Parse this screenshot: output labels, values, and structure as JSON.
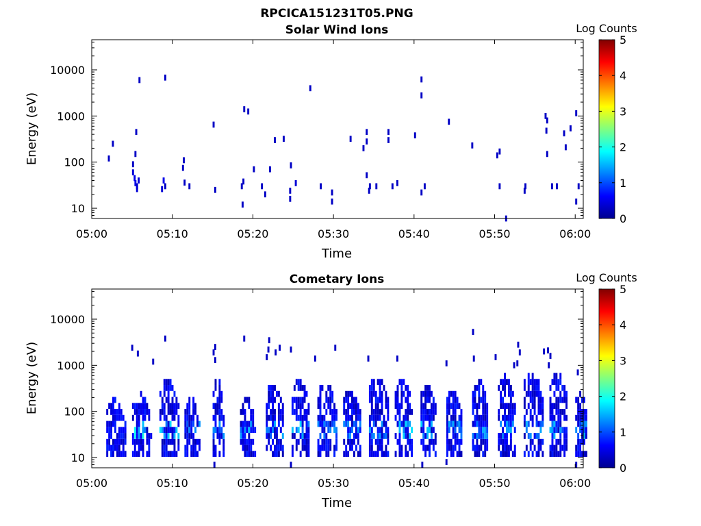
{
  "figure_title": "RPCICA151231T05.PNG",
  "colormap": [
    "#00008f",
    "#0000ff",
    "#0080ff",
    "#00ffff",
    "#80ff80",
    "#ffff00",
    "#ff8000",
    "#ff0000",
    "#800000"
  ],
  "chart_data": [
    {
      "type": "heatmap",
      "title": "Solar Wind Ions",
      "xlabel": "Time",
      "ylabel": "Energy (eV)",
      "x_ticks": [
        "05:00",
        "05:10",
        "05:20",
        "05:30",
        "05:40",
        "05:50",
        "06:00"
      ],
      "x_range_min": [
        0,
        61
      ],
      "y_scale": "log",
      "y_range": [
        6,
        45000
      ],
      "y_ticks": [
        10,
        100,
        1000,
        10000
      ],
      "y_tick_labels": [
        "10",
        "100",
        "1000",
        "10000"
      ],
      "colorbar": {
        "label": "Log Counts",
        "range": [
          0,
          5
        ],
        "ticks": [
          "0",
          "1",
          "2",
          "3",
          "4",
          "5"
        ]
      },
      "points": [
        [
          2.0,
          120,
          0.3
        ],
        [
          2.5,
          250,
          0.3
        ],
        [
          5.0,
          90,
          0.3
        ],
        [
          5.0,
          60,
          0.4
        ],
        [
          5.2,
          45,
          0.5
        ],
        [
          5.3,
          35,
          0.5
        ],
        [
          5.5,
          30,
          0.3
        ],
        [
          5.5,
          26,
          0.4
        ],
        [
          5.7,
          40,
          0.4
        ],
        [
          5.3,
          150,
          0.3
        ],
        [
          5.4,
          450,
          0.3
        ],
        [
          5.8,
          6000,
          0.3
        ],
        [
          8.6,
          26,
          0.4
        ],
        [
          8.8,
          40,
          0.5
        ],
        [
          9.0,
          30,
          0.3
        ],
        [
          9.0,
          6800,
          0.3
        ],
        [
          11.3,
          110,
          0.3
        ],
        [
          11.2,
          75,
          0.3
        ],
        [
          11.4,
          36,
          0.3
        ],
        [
          12.0,
          30,
          0.3
        ],
        [
          15.0,
          650,
          0.3
        ],
        [
          15.2,
          25,
          0.3
        ],
        [
          18.8,
          1400,
          0.3
        ],
        [
          19.3,
          1250,
          0.3
        ],
        [
          18.5,
          30,
          0.3
        ],
        [
          18.7,
          38,
          0.3
        ],
        [
          18.6,
          12,
          0.3
        ],
        [
          20.0,
          70,
          0.3
        ],
        [
          21.0,
          30,
          0.3
        ],
        [
          21.4,
          20,
          0.3
        ],
        [
          22.0,
          70,
          0.3
        ],
        [
          22.6,
          300,
          0.3
        ],
        [
          23.7,
          320,
          0.3
        ],
        [
          24.6,
          85,
          0.3
        ],
        [
          24.5,
          16,
          0.3
        ],
        [
          24.5,
          24,
          0.3
        ],
        [
          25.2,
          35,
          0.4
        ],
        [
          27.0,
          4000,
          0.3
        ],
        [
          28.3,
          30,
          0.3
        ],
        [
          29.7,
          22,
          0.3
        ],
        [
          29.7,
          14,
          0.3
        ],
        [
          32.0,
          320,
          0.3
        ],
        [
          33.6,
          200,
          0.3
        ],
        [
          34.0,
          450,
          0.3
        ],
        [
          34.0,
          280,
          0.3
        ],
        [
          34.0,
          52,
          0.3
        ],
        [
          34.4,
          30,
          0.3
        ],
        [
          34.3,
          24,
          0.3
        ],
        [
          35.2,
          30,
          0.3
        ],
        [
          36.7,
          450,
          0.3
        ],
        [
          36.7,
          300,
          0.3
        ],
        [
          37.2,
          30,
          0.3
        ],
        [
          37.8,
          35,
          0.3
        ],
        [
          40.0,
          380,
          0.3
        ],
        [
          40.8,
          6200,
          0.3
        ],
        [
          40.8,
          2800,
          0.3
        ],
        [
          40.8,
          22,
          0.3
        ],
        [
          41.2,
          30,
          0.3
        ],
        [
          44.2,
          750,
          0.3
        ],
        [
          47.1,
          230,
          0.3
        ],
        [
          50.2,
          140,
          0.3
        ],
        [
          50.5,
          170,
          0.3
        ],
        [
          50.5,
          30,
          0.3
        ],
        [
          51.3,
          6,
          0.3
        ],
        [
          53.7,
          30,
          0.3
        ],
        [
          53.6,
          24,
          0.3
        ],
        [
          56.2,
          1000,
          0.3
        ],
        [
          56.4,
          800,
          0.3
        ],
        [
          56.3,
          480,
          0.3
        ],
        [
          56.4,
          150,
          0.3
        ],
        [
          57.0,
          30,
          0.3
        ],
        [
          57.6,
          30,
          0.3
        ],
        [
          58.5,
          420,
          0.3
        ],
        [
          58.7,
          210,
          0.3
        ],
        [
          59.3,
          540,
          0.3
        ],
        [
          60.0,
          1150,
          0.3
        ],
        [
          60.3,
          30,
          0.3
        ],
        [
          60.0,
          14,
          0.3
        ]
      ]
    },
    {
      "type": "heatmap",
      "title": "Cometary Ions",
      "xlabel": "Time",
      "ylabel": "Energy (eV)",
      "x_ticks": [
        "05:00",
        "05:10",
        "05:20",
        "05:30",
        "05:40",
        "05:50",
        "06:00"
      ],
      "x_range_min": [
        0,
        61
      ],
      "y_scale": "log",
      "y_range": [
        6,
        45000
      ],
      "y_ticks": [
        10,
        100,
        1000,
        10000
      ],
      "y_tick_labels": [
        "10",
        "100",
        "1000",
        "10000"
      ],
      "colorbar": {
        "label": "Log Counts",
        "range": [
          0,
          5
        ],
        "ticks": [
          "0",
          "1",
          "2",
          "3",
          "4",
          "5"
        ]
      },
      "bursts": [
        {
          "t": 1.8,
          "w": 2.4,
          "hi": 180,
          "peak": 0.9
        },
        {
          "t": 5.0,
          "w": 2.6,
          "hi": 250,
          "peak": 2.0
        },
        {
          "t": 8.4,
          "w": 2.6,
          "hi": 500,
          "peak": 1.8
        },
        {
          "t": 11.5,
          "w": 2.0,
          "hi": 200,
          "peak": 1.6
        },
        {
          "t": 15.0,
          "w": 1.6,
          "hi": 600,
          "peak": 1.5
        },
        {
          "t": 18.4,
          "w": 2.0,
          "hi": 200,
          "peak": 1.6
        },
        {
          "t": 21.6,
          "w": 2.2,
          "hi": 400,
          "peak": 1.5
        },
        {
          "t": 24.8,
          "w": 2.2,
          "hi": 500,
          "peak": 1.7
        },
        {
          "t": 28.0,
          "w": 2.4,
          "hi": 400,
          "peak": 1.4
        },
        {
          "t": 31.2,
          "w": 2.2,
          "hi": 300,
          "peak": 1.5
        },
        {
          "t": 34.4,
          "w": 2.4,
          "hi": 600,
          "peak": 1.6
        },
        {
          "t": 37.6,
          "w": 2.2,
          "hi": 500,
          "peak": 1.9
        },
        {
          "t": 40.8,
          "w": 2.0,
          "hi": 400,
          "peak": 1.7
        },
        {
          "t": 44.0,
          "w": 2.0,
          "hi": 300,
          "peak": 1.5
        },
        {
          "t": 47.2,
          "w": 2.0,
          "hi": 500,
          "peak": 1.5
        },
        {
          "t": 50.4,
          "w": 2.2,
          "hi": 600,
          "peak": 1.5
        },
        {
          "t": 53.6,
          "w": 2.4,
          "hi": 700,
          "peak": 1.6
        },
        {
          "t": 56.8,
          "w": 2.2,
          "hi": 700,
          "peak": 1.6
        },
        {
          "t": 60.0,
          "w": 1.6,
          "hi": 300,
          "peak": 1.5
        }
      ],
      "points": [
        [
          4.9,
          2400,
          0.3
        ],
        [
          5.6,
          1800,
          0.3
        ],
        [
          7.5,
          1200,
          0.3
        ],
        [
          9.0,
          3800,
          0.3
        ],
        [
          15.2,
          2500,
          0.3
        ],
        [
          15.0,
          1900,
          0.3
        ],
        [
          15.2,
          1300,
          0.3
        ],
        [
          18.8,
          3800,
          0.3
        ],
        [
          21.9,
          3500,
          0.3
        ],
        [
          21.8,
          2200,
          0.3
        ],
        [
          21.6,
          1500,
          0.3
        ],
        [
          23.2,
          2400,
          0.3
        ],
        [
          22.7,
          1900,
          0.3
        ],
        [
          24.6,
          2200,
          0.3
        ],
        [
          27.6,
          1400,
          0.3
        ],
        [
          30.1,
          2400,
          0.3
        ],
        [
          34.2,
          1400,
          0.3
        ],
        [
          37.8,
          1400,
          0.3
        ],
        [
          43.9,
          1100,
          0.3
        ],
        [
          47.2,
          5300,
          0.3
        ],
        [
          47.3,
          1400,
          0.3
        ],
        [
          50.0,
          1500,
          0.3
        ],
        [
          52.3,
          1000,
          0.3
        ],
        [
          52.8,
          2800,
          0.3
        ],
        [
          53.0,
          1900,
          0.3
        ],
        [
          52.7,
          1100,
          0.3
        ],
        [
          56.0,
          2000,
          0.3
        ],
        [
          56.5,
          2100,
          0.3
        ],
        [
          56.8,
          1600,
          0.3
        ],
        [
          56.6,
          1000,
          0.3
        ],
        [
          60.2,
          700,
          0.3
        ],
        [
          15.1,
          7,
          0.3
        ],
        [
          24.6,
          7,
          0.3
        ],
        [
          40.9,
          7,
          0.3
        ],
        [
          43.9,
          8,
          0.3
        ],
        [
          60.0,
          7,
          0.3
        ]
      ]
    }
  ]
}
